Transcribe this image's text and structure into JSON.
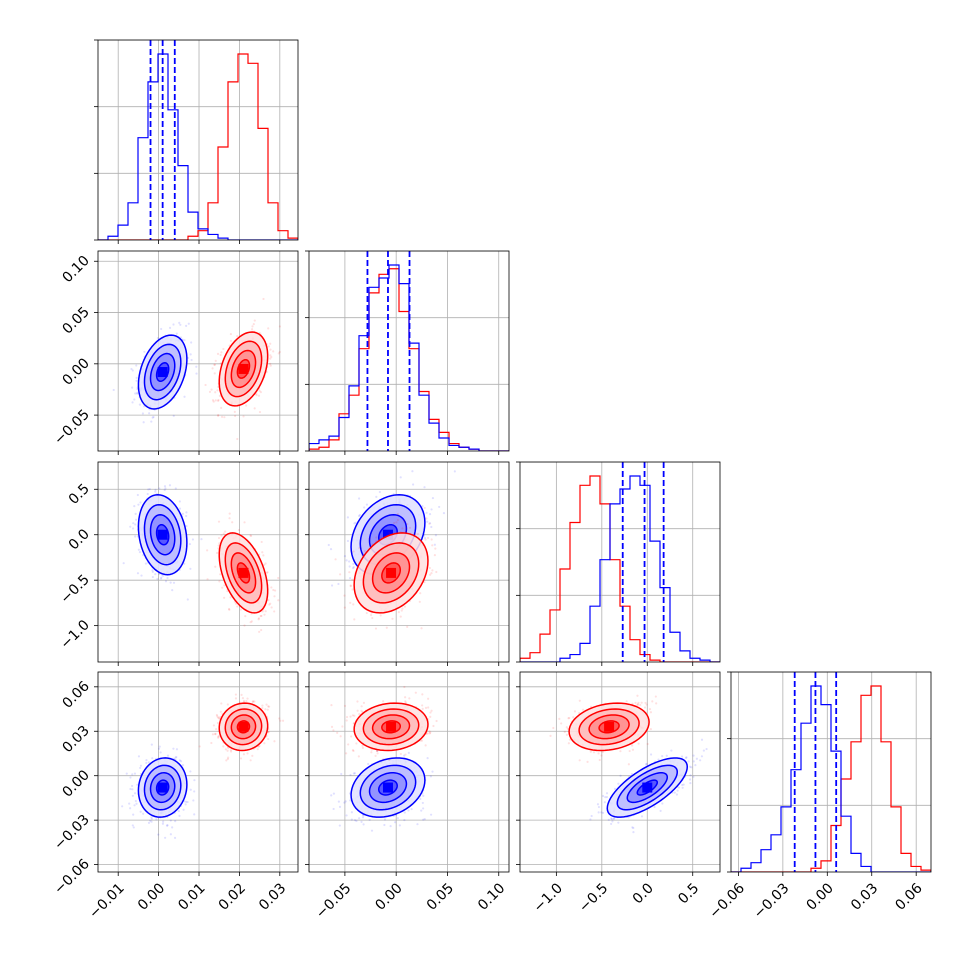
{
  "chart_data": {
    "type": "corner",
    "grid": true,
    "series": [
      {
        "color": "#0000ff",
        "mean": [
          0.001,
          -0.008,
          0.0,
          -0.008
        ],
        "std": [
          0.003,
          0.018,
          0.22,
          0.01
        ],
        "corr": [
          [
            1,
            0.35,
            -0.2,
            0.1
          ],
          [
            0.35,
            1,
            0.3,
            0.25
          ],
          [
            -0.2,
            0.3,
            1,
            0.7
          ],
          [
            0.1,
            0.25,
            0.7,
            1
          ]
        ]
      },
      {
        "color": "#ff0000",
        "mean": [
          0.021,
          -0.005,
          -0.42,
          0.033
        ],
        "std": [
          0.003,
          0.018,
          0.22,
          0.008
        ],
        "corr": [
          [
            1,
            0.35,
            -0.45,
            0.05
          ],
          [
            0.35,
            1,
            0.3,
            0.1
          ],
          [
            -0.45,
            0.3,
            1,
            0.2
          ],
          [
            0.05,
            0.1,
            0.2,
            1
          ]
        ]
      }
    ],
    "histograms": [
      {
        "bins": [
          -0.015,
          0.0345
        ],
        "blue": [
          0,
          0.02,
          0.08,
          0.2,
          0.55,
          0.85,
          1.0,
          0.7,
          0.4,
          0.15,
          0.06,
          0.03,
          0.01,
          0,
          0,
          0,
          0,
          0,
          0,
          0
        ],
        "red": [
          0,
          0,
          0,
          0,
          0,
          0,
          0,
          0,
          0,
          0.02,
          0.05,
          0.2,
          0.5,
          0.85,
          1.0,
          0.95,
          0.6,
          0.2,
          0.05,
          0.01
        ]
      },
      {
        "bins": [
          -0.085,
          0.11
        ],
        "blue": [
          0.04,
          0.06,
          0.08,
          0.18,
          0.35,
          0.62,
          0.88,
          0.93,
          1.0,
          0.9,
          0.58,
          0.3,
          0.15,
          0.07,
          0.03,
          0.02,
          0.01,
          0,
          0,
          0
        ],
        "red": [
          0.01,
          0.02,
          0.06,
          0.2,
          0.3,
          0.55,
          0.85,
          0.95,
          0.98,
          0.75,
          0.55,
          0.32,
          0.17,
          0.1,
          0.04,
          0.02,
          0.01,
          0,
          0,
          0
        ]
      },
      {
        "bins": [
          -1.4,
          0.8
        ],
        "blue": [
          0,
          0,
          0,
          0,
          0.02,
          0.04,
          0.1,
          0.3,
          0.55,
          0.85,
          0.93,
          1.0,
          0.95,
          0.65,
          0.4,
          0.16,
          0.06,
          0.02,
          0.01,
          0
        ],
        "red": [
          0.02,
          0.05,
          0.15,
          0.28,
          0.5,
          0.75,
          0.95,
          1.0,
          0.85,
          0.55,
          0.3,
          0.12,
          0.04,
          0.01,
          0,
          0,
          0,
          0,
          0,
          0
        ]
      },
      {
        "bins": [
          -0.065,
          0.07
        ],
        "blue": [
          0,
          0.02,
          0.05,
          0.12,
          0.2,
          0.35,
          0.55,
          0.8,
          1.0,
          0.9,
          0.65,
          0.3,
          0.1,
          0.03,
          0,
          0,
          0,
          0,
          0,
          0
        ],
        "red": [
          0,
          0,
          0,
          0,
          0,
          0,
          0,
          0,
          0.02,
          0.06,
          0.25,
          0.5,
          0.7,
          0.95,
          1.0,
          0.7,
          0.35,
          0.1,
          0.03,
          0.01
        ]
      }
    ],
    "quantiles": [
      [
        -0.002,
        0.001,
        0.004
      ],
      [
        -0.028,
        -0.008,
        0.013
      ],
      [
        -0.27,
        -0.03,
        0.18
      ],
      [
        -0.022,
        -0.008,
        0.006
      ]
    ],
    "ranges": [
      [
        -0.015,
        0.0345
      ],
      [
        -0.085,
        0.11
      ],
      [
        -1.4,
        0.8
      ],
      [
        -0.065,
        0.07
      ]
    ],
    "ticks": [
      [
        {
          "v": -0.01,
          "label": "−0.01"
        },
        {
          "v": 0.0,
          "label": "0.00"
        },
        {
          "v": 0.01,
          "label": "0.01"
        },
        {
          "v": 0.02,
          "label": "0.02"
        },
        {
          "v": 0.03,
          "label": "0.03"
        }
      ],
      [
        {
          "v": -0.05,
          "label": "−0.05"
        },
        {
          "v": 0.0,
          "label": "0.00"
        },
        {
          "v": 0.05,
          "label": "0.05"
        },
        {
          "v": 0.1,
          "label": "0.10"
        }
      ],
      [
        {
          "v": -1.0,
          "label": "−1.0"
        },
        {
          "v": -0.5,
          "label": "−0.5"
        },
        {
          "v": 0.0,
          "label": "0.0"
        },
        {
          "v": 0.5,
          "label": "0.5"
        }
      ],
      [
        {
          "v": -0.06,
          "label": "−0.06"
        },
        {
          "v": -0.03,
          "label": "−0.03"
        },
        {
          "v": 0.0,
          "label": "0.00"
        },
        {
          "v": 0.03,
          "label": "0.03"
        },
        {
          "v": 0.06,
          "label": "0.06"
        }
      ]
    ],
    "y_ticks": [
      [],
      [
        {
          "v": -0.05,
          "label": "−0.05"
        },
        {
          "v": 0.0,
          "label": "0.00"
        },
        {
          "v": 0.05,
          "label": "0.05"
        },
        {
          "v": 0.1,
          "label": "0.10"
        }
      ],
      [
        {
          "v": -1.0,
          "label": "−1.0"
        },
        {
          "v": -0.5,
          "label": "−0.5"
        },
        {
          "v": 0.0,
          "label": "0.0"
        },
        {
          "v": 0.5,
          "label": "0.5"
        }
      ],
      [
        {
          "v": -0.06,
          "label": "−0.06"
        },
        {
          "v": -0.03,
          "label": "−0.03"
        },
        {
          "v": 0.0,
          "label": "0.00"
        },
        {
          "v": 0.03,
          "label": "0.03"
        },
        {
          "v": 0.06,
          "label": "0.06"
        }
      ]
    ]
  }
}
